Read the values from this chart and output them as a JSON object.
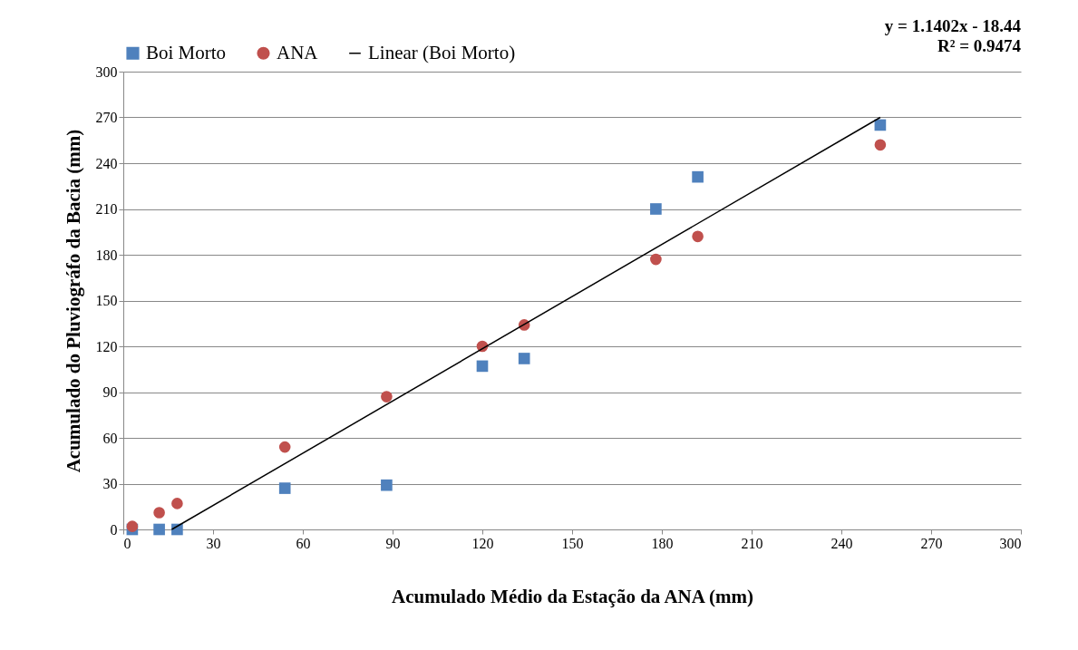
{
  "chart_data": {
    "type": "scatter",
    "xlabel": "Acumulado Médio da Estação da ANA (mm)",
    "ylabel": "Acumulado do Pluviográfo da Bacia (mm)",
    "annotations": [
      "y = 1.1402x - 18.44",
      "R² = 0.9474"
    ],
    "xlim": [
      0,
      300
    ],
    "xticks": [
      0,
      30,
      60,
      90,
      120,
      150,
      180,
      210,
      240,
      270,
      300
    ],
    "ylim": [
      0,
      300
    ],
    "yticks": [
      0,
      30,
      60,
      90,
      120,
      150,
      180,
      210,
      240,
      270,
      300
    ],
    "grid": "y",
    "legend": "top",
    "series": [
      {
        "name": "Boi Morto",
        "marker": "square",
        "color": "#4f81bd",
        "x": [
          3,
          12,
          18,
          54,
          88,
          120,
          134,
          178,
          192,
          253
        ],
        "values": [
          0,
          0,
          0,
          27,
          29,
          107,
          112,
          210,
          231,
          265
        ]
      },
      {
        "name": "ANA",
        "marker": "circle",
        "color": "#c0504d",
        "x": [
          3,
          12,
          18,
          54,
          88,
          120,
          134,
          178,
          192,
          253
        ],
        "values": [
          2,
          11,
          17,
          54,
          87,
          120,
          134,
          177,
          192,
          252
        ]
      },
      {
        "name": "Linear (Boi Morto)",
        "type": "line",
        "marker": "none",
        "color": "#000000",
        "x": [
          16.2,
          253
        ],
        "values": [
          0,
          270
        ]
      }
    ]
  }
}
